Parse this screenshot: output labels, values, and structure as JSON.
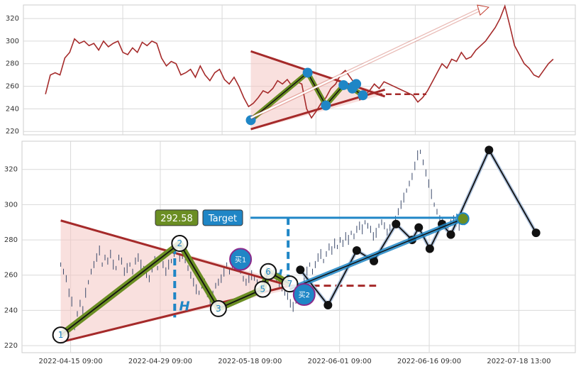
{
  "chart_data": [
    {
      "type": "line",
      "panel": "overview",
      "title": "",
      "ylim": [
        217,
        332
      ],
      "y_ticks": [
        220,
        240,
        260,
        280,
        300,
        320
      ],
      "grid": true,
      "colors": {
        "price": "#a52a2a",
        "zone_fill": "#f4c7c3",
        "pattern": "#6b8e23",
        "pivot": "#1f86c6",
        "arrow": "#c0392b"
      },
      "series": [
        {
          "values": [
            253,
            270,
            272,
            270,
            285,
            290,
            302,
            298,
            300,
            296,
            298,
            292,
            300,
            295,
            298,
            300,
            290,
            288,
            294,
            290,
            299,
            296,
            300,
            298,
            285,
            278,
            282,
            280,
            270,
            272,
            275,
            268,
            278,
            270,
            265,
            272,
            275,
            266,
            262,
            268,
            260,
            250,
            242,
            245,
            250,
            256,
            254,
            258,
            265,
            262,
            266,
            260,
            264,
            262,
            240,
            232,
            238,
            245,
            250,
            258,
            262,
            270,
            274,
            268,
            262,
            248,
            252,
            256,
            262,
            258,
            264,
            262,
            260,
            258,
            256,
            254,
            252,
            246,
            250,
            256,
            264,
            272,
            280,
            276,
            284,
            282,
            290,
            284,
            286,
            292,
            296,
            300,
            306,
            312,
            320,
            331,
            314,
            296,
            288,
            280,
            276,
            270,
            268,
            274,
            280,
            284
          ]
        }
      ],
      "pattern_points": [
        [
          0.412,
          230
        ],
        [
          0.515,
          272
        ],
        [
          0.548,
          243
        ],
        [
          0.58,
          261
        ],
        [
          0.596,
          258
        ],
        [
          0.615,
          252
        ]
      ]
    },
    {
      "type": "line",
      "panel": "detail",
      "title": "",
      "ylim": [
        216,
        336
      ],
      "y_ticks": [
        220,
        240,
        260,
        280,
        300,
        320
      ],
      "x_ticks": [
        "2022-04-15 09:00",
        "2022-04-29 09:00",
        "2022-05-18 09:00",
        "2022-06-01 09:00",
        "2022-06-16 09:00",
        "2022-07-18 13:00"
      ],
      "grid": true,
      "colors": {
        "bars": "#3b4a6b",
        "zone_fill": "#f4c7c3",
        "pattern": "#6b8e23",
        "trend_line": "#1f86c6",
        "target_line": "#1f86c6",
        "black_line": "#111111",
        "label_green": "#6b8e23",
        "label_blue": "#1f86c6",
        "buy_fill": "#1f86c6"
      },
      "price_bars": [
        [
          0.02,
          266
        ],
        [
          0.025,
          262
        ],
        [
          0.03,
          258
        ],
        [
          0.035,
          250
        ],
        [
          0.04,
          245
        ],
        [
          0.045,
          230
        ],
        [
          0.05,
          238
        ],
        [
          0.055,
          244
        ],
        [
          0.06,
          240
        ],
        [
          0.065,
          250
        ],
        [
          0.07,
          256
        ],
        [
          0.075,
          262
        ],
        [
          0.08,
          266
        ],
        [
          0.085,
          270
        ],
        [
          0.09,
          274
        ],
        [
          0.095,
          266
        ],
        [
          0.1,
          270
        ],
        [
          0.105,
          268
        ],
        [
          0.11,
          272
        ],
        [
          0.115,
          266
        ],
        [
          0.12,
          264
        ],
        [
          0.125,
          270
        ],
        [
          0.13,
          268
        ],
        [
          0.135,
          262
        ],
        [
          0.14,
          264
        ],
        [
          0.145,
          266
        ],
        [
          0.15,
          262
        ],
        [
          0.155,
          268
        ],
        [
          0.16,
          270
        ],
        [
          0.165,
          266
        ],
        [
          0.17,
          264
        ],
        [
          0.175,
          260
        ],
        [
          0.18,
          258
        ],
        [
          0.185,
          264
        ],
        [
          0.19,
          268
        ],
        [
          0.195,
          264
        ],
        [
          0.2,
          270
        ],
        [
          0.205,
          266
        ],
        [
          0.21,
          262
        ],
        [
          0.215,
          266
        ],
        [
          0.22,
          268
        ],
        [
          0.225,
          272
        ],
        [
          0.23,
          276
        ],
        [
          0.235,
          270
        ],
        [
          0.24,
          272
        ],
        [
          0.245,
          268
        ],
        [
          0.25,
          264
        ],
        [
          0.255,
          260
        ],
        [
          0.26,
          256
        ],
        [
          0.265,
          252
        ],
        [
          0.27,
          250
        ],
        [
          0.275,
          254
        ],
        [
          0.28,
          256
        ],
        [
          0.285,
          250
        ],
        [
          0.29,
          246
        ],
        [
          0.295,
          250
        ],
        [
          0.3,
          254
        ],
        [
          0.305,
          256
        ],
        [
          0.31,
          258
        ],
        [
          0.315,
          262
        ],
        [
          0.32,
          266
        ],
        [
          0.325,
          262
        ],
        [
          0.33,
          266
        ],
        [
          0.335,
          270
        ],
        [
          0.34,
          266
        ],
        [
          0.345,
          262
        ],
        [
          0.35,
          258
        ],
        [
          0.355,
          256
        ],
        [
          0.36,
          258
        ],
        [
          0.365,
          260
        ],
        [
          0.37,
          258
        ],
        [
          0.375,
          256
        ],
        [
          0.38,
          252
        ],
        [
          0.385,
          255
        ],
        [
          0.39,
          258
        ],
        [
          0.395,
          256
        ],
        [
          0.4,
          258
        ],
        [
          0.405,
          262
        ],
        [
          0.41,
          258
        ],
        [
          0.415,
          256
        ],
        [
          0.42,
          252
        ],
        [
          0.425,
          250
        ],
        [
          0.43,
          248
        ],
        [
          0.435,
          244
        ],
        [
          0.44,
          242
        ],
        [
          0.445,
          245
        ],
        [
          0.45,
          248
        ],
        [
          0.455,
          252
        ],
        [
          0.46,
          258
        ],
        [
          0.465,
          262
        ],
        [
          0.47,
          266
        ],
        [
          0.475,
          262
        ],
        [
          0.48,
          266
        ],
        [
          0.485,
          270
        ],
        [
          0.49,
          272
        ],
        [
          0.495,
          268
        ],
        [
          0.5,
          272
        ],
        [
          0.505,
          276
        ],
        [
          0.51,
          274
        ],
        [
          0.515,
          278
        ],
        [
          0.52,
          276
        ],
        [
          0.525,
          280
        ],
        [
          0.53,
          278
        ],
        [
          0.535,
          282
        ],
        [
          0.54,
          280
        ],
        [
          0.545,
          284
        ],
        [
          0.55,
          282
        ],
        [
          0.555,
          286
        ],
        [
          0.56,
          288
        ],
        [
          0.565,
          286
        ],
        [
          0.57,
          290
        ],
        [
          0.575,
          288
        ],
        [
          0.58,
          286
        ],
        [
          0.585,
          282
        ],
        [
          0.59,
          284
        ],
        [
          0.595,
          288
        ],
        [
          0.6,
          290
        ],
        [
          0.605,
          288
        ],
        [
          0.61,
          284
        ],
        [
          0.615,
          286
        ],
        [
          0.62,
          288
        ],
        [
          0.625,
          292
        ],
        [
          0.63,
          296
        ],
        [
          0.635,
          300
        ],
        [
          0.64,
          304
        ],
        [
          0.645,
          308
        ],
        [
          0.65,
          312
        ],
        [
          0.655,
          316
        ],
        [
          0.66,
          322
        ],
        [
          0.665,
          328
        ],
        [
          0.67,
          330
        ],
        [
          0.675,
          324
        ],
        [
          0.68,
          318
        ],
        [
          0.685,
          312
        ],
        [
          0.69,
          306
        ],
        [
          0.695,
          300
        ],
        [
          0.7,
          296
        ],
        [
          0.705,
          292
        ],
        [
          0.71,
          290
        ],
        [
          0.715,
          288
        ],
        [
          0.72,
          286
        ],
        [
          0.725,
          290
        ],
        [
          0.73,
          292
        ],
        [
          0.735,
          290
        ],
        [
          0.74,
          288
        ],
        [
          0.745,
          292
        ],
        [
          0.75,
          290
        ]
      ],
      "pattern_points": [
        {
          "label": "1",
          "x": 0.07,
          "y": 226
        },
        {
          "label": "2",
          "x": 0.285,
          "y": 278
        },
        {
          "label": "3",
          "x": 0.355,
          "y": 241
        },
        {
          "label": "5",
          "x": 0.435,
          "y": 252
        },
        {
          "label": "6",
          "x": 0.445,
          "y": 262
        },
        {
          "label": "7",
          "x": 0.484,
          "y": 255
        }
      ],
      "black_pivots": [
        [
          0.503,
          263
        ],
        [
          0.553,
          243
        ],
        [
          0.605,
          274
        ],
        [
          0.636,
          268
        ],
        [
          0.676,
          289
        ],
        [
          0.705,
          280
        ],
        [
          0.717,
          287
        ],
        [
          0.737,
          275
        ],
        [
          0.759,
          289
        ],
        [
          0.775,
          283
        ],
        [
          0.844,
          331
        ],
        [
          0.929,
          284
        ]
      ],
      "target": {
        "value": 292.58,
        "value_label": "292.58",
        "label": "Target"
      },
      "h_marks": [
        "H",
        "H"
      ],
      "buy_signals": [
        {
          "label": "买1",
          "x": 0.395,
          "y": 269
        },
        {
          "label": "买2",
          "x": 0.51,
          "y": 249
        }
      ]
    }
  ]
}
